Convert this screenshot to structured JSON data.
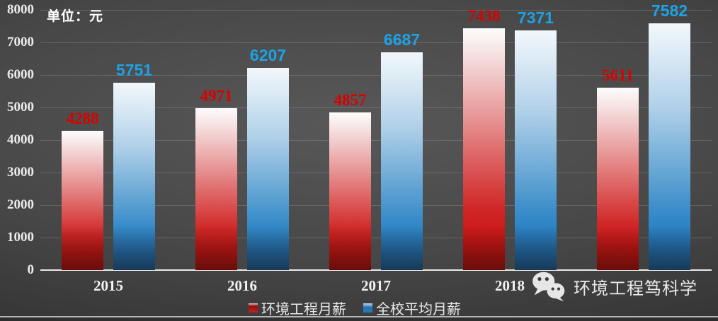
{
  "unit_label": "单位：元",
  "watermark": {
    "icon": "wechat-icon",
    "text": "环境工程笃科学"
  },
  "chart_data": {
    "type": "bar",
    "categories": [
      "2015",
      "2016",
      "2017",
      "2018",
      ""
    ],
    "series": [
      {
        "name": "环境工程月薪",
        "color": "#c41414",
        "label_color": "#db0000",
        "values": [
          4288,
          4971,
          4857,
          7438,
          5611
        ]
      },
      {
        "name": "全校平均月薪",
        "color": "#1b7fc8",
        "label_color": "#1da2e4",
        "values": [
          5751,
          6207,
          6687,
          7371,
          7582
        ]
      }
    ],
    "ylim": [
      0,
      8000
    ],
    "y_ticks": [
      0,
      1000,
      2000,
      3000,
      4000,
      5000,
      6000,
      7000,
      8000
    ],
    "grid": true,
    "legend_position": "bottom"
  }
}
